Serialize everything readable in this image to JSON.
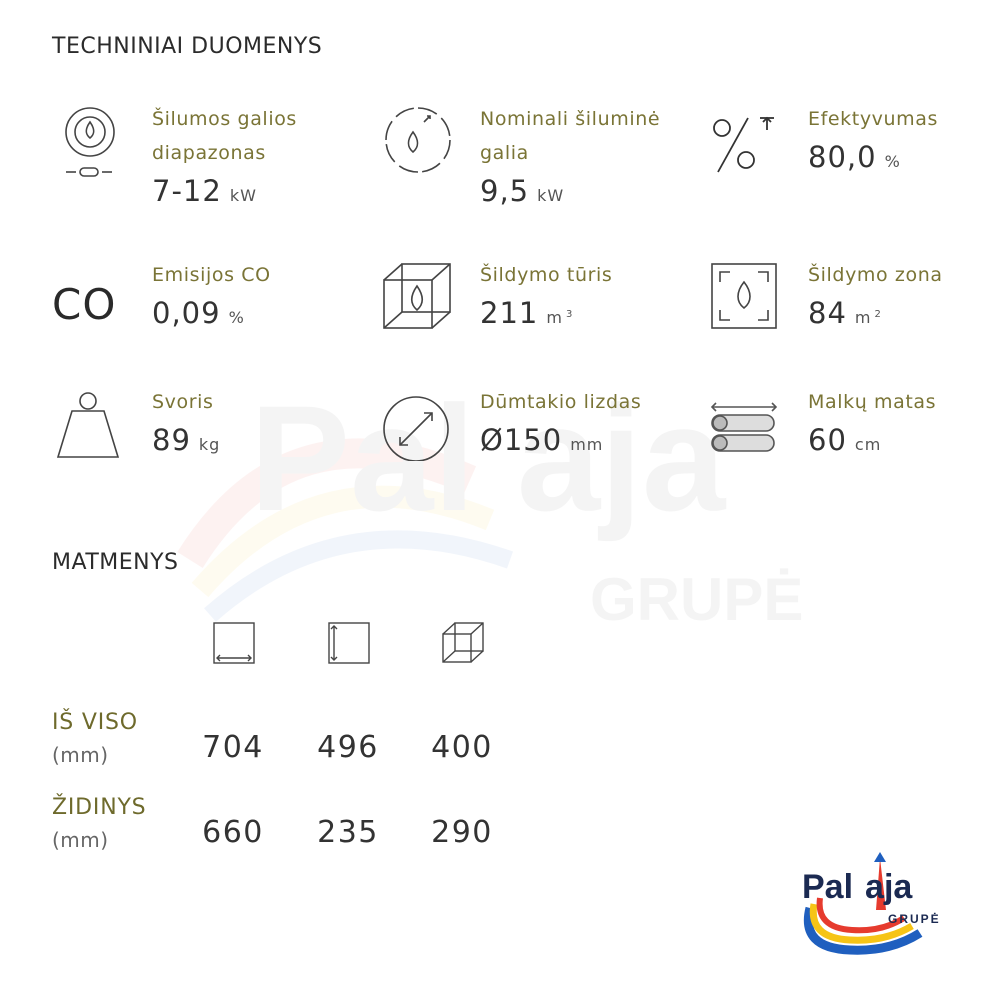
{
  "sections": {
    "tech_title": "TECHNINIAI DUOMENYS",
    "dims_title": "MATMENYS"
  },
  "specs": [
    {
      "label": "Šilumos galios diapazonas",
      "value": "7-12",
      "unit": "kW",
      "sup": "",
      "icon": "flame-range-icon"
    },
    {
      "label": "Nominali šiluminė galia",
      "value": "9,5",
      "unit": "kW",
      "sup": "",
      "icon": "flame-circle-icon"
    },
    {
      "label": "Efektyvumas",
      "value": "80,0",
      "unit": "%",
      "sup": "",
      "icon": "percent-icon"
    },
    {
      "label": "Emisijos CO",
      "value": "0,09",
      "unit": "%",
      "sup": "",
      "icon": "co-text-icon",
      "icon_text": "CO"
    },
    {
      "label": "Šildymo tūris",
      "value": "211",
      "unit": "m",
      "sup": "3",
      "icon": "cube-flame-icon"
    },
    {
      "label": "Šildymo zona",
      "value": "84",
      "unit": "m",
      "sup": "2",
      "icon": "square-flame-icon"
    },
    {
      "label": "Svoris",
      "value": "89",
      "unit": "kg",
      "sup": "",
      "icon": "weight-icon"
    },
    {
      "label": "Dūmtakio lizdas",
      "value": "Ø150",
      "unit": "mm",
      "sup": "",
      "icon": "diameter-icon"
    },
    {
      "label": "Malkų matas",
      "value": "60",
      "unit": "cm",
      "sup": "",
      "icon": "logs-icon"
    }
  ],
  "dimensions": {
    "columns": [
      "width-icon",
      "height-icon",
      "depth-icon"
    ],
    "rows": [
      {
        "label": "IŠ VISO",
        "unit": "(mm)",
        "values": [
          "704",
          "496",
          "400"
        ]
      },
      {
        "label": "ŽIDINYS",
        "unit": "(mm)",
        "values": [
          "660",
          "235",
          "290"
        ]
      }
    ]
  },
  "brand": {
    "name_left": "Pal",
    "name_right": "aja",
    "sub": "GRUPĖ",
    "colors": {
      "red": "#e63b2e",
      "blue": "#1f5fbf",
      "yellow": "#f6c416",
      "navy": "#1b2a52"
    }
  }
}
